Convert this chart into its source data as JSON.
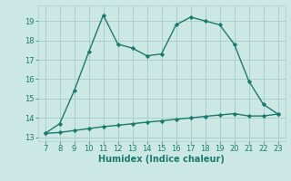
{
  "x": [
    7,
    8,
    9,
    10,
    11,
    12,
    13,
    14,
    15,
    16,
    17,
    18,
    19,
    20,
    21,
    22,
    23
  ],
  "y_line1": [
    13.2,
    13.7,
    15.4,
    17.4,
    19.3,
    17.8,
    17.6,
    17.2,
    17.3,
    18.8,
    19.2,
    19.0,
    18.8,
    17.8,
    15.9,
    14.7,
    14.2
  ],
  "y_line2": [
    13.2,
    13.25,
    13.35,
    13.45,
    13.55,
    13.62,
    13.7,
    13.78,
    13.85,
    13.93,
    14.0,
    14.08,
    14.15,
    14.22,
    14.1,
    14.1,
    14.2
  ],
  "line_color": "#1a7a6e",
  "bg_color": "#cce8e4",
  "grid_color": "#aad0cc",
  "xlabel": "Humidex (Indice chaleur)",
  "xlim": [
    6.5,
    23.5
  ],
  "ylim": [
    12.8,
    19.8
  ],
  "yticks": [
    13,
    14,
    15,
    16,
    17,
    18,
    19
  ],
  "xticks": [
    7,
    8,
    9,
    10,
    11,
    12,
    13,
    14,
    15,
    16,
    17,
    18,
    19,
    20,
    21,
    22,
    23
  ],
  "marker": "D",
  "markersize": 2.2,
  "linewidth": 1.0,
  "font_color": "#1a7a6e",
  "tick_fontsize": 6.0,
  "xlabel_fontsize": 7.0
}
